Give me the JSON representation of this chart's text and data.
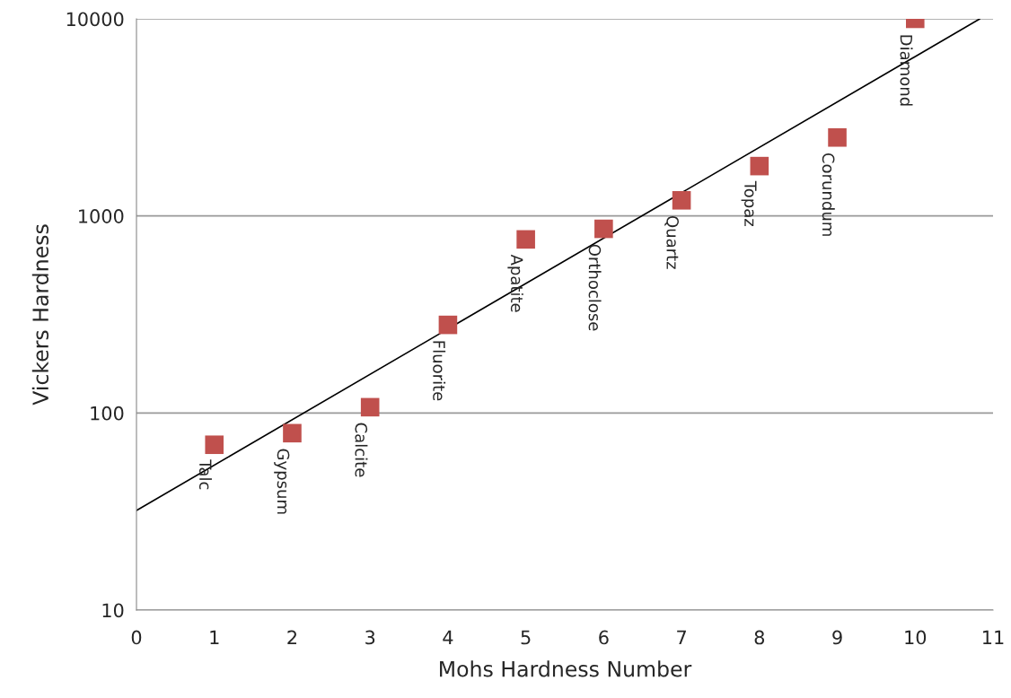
{
  "chart_data": {
    "type": "scatter",
    "xlabel": "Mohs Hardness Number",
    "ylabel": "Vickers Hardness",
    "log": "y",
    "grid": "y",
    "xlim": [
      0,
      11
    ],
    "xticks": [
      0,
      1,
      2,
      3,
      4,
      5,
      6,
      7,
      8,
      9,
      10,
      11
    ],
    "ylim": [
      10,
      10000
    ],
    "yticks": [
      10,
      100,
      1000,
      10000
    ],
    "series": [
      {
        "marker": "square",
        "color": "#c0504d",
        "x": [
          1,
          2,
          3,
          4,
          5,
          6,
          7,
          8,
          9,
          10
        ],
        "values": [
          69,
          79,
          107,
          280,
          760,
          860,
          1200,
          1790,
          2500,
          10000
        ]
      },
      {
        "type": "line",
        "marker": "none",
        "color": "#000000",
        "x": [
          0,
          10.83
        ],
        "values": [
          32,
          10000
        ]
      }
    ],
    "annotations": [
      {
        "text": "Talc",
        "x": 1,
        "y": 69
      },
      {
        "text": "Gypsum",
        "x": 2,
        "y": 79
      },
      {
        "text": "Calcite",
        "x": 3,
        "y": 107
      },
      {
        "text": "Fluorite",
        "x": 4,
        "y": 280
      },
      {
        "text": "Apatite",
        "x": 5,
        "y": 760
      },
      {
        "text": "Orthoclose",
        "x": 6,
        "y": 860
      },
      {
        "text": "Quartz",
        "x": 7,
        "y": 1200
      },
      {
        "text": "Topaz",
        "x": 8,
        "y": 1790
      },
      {
        "text": "Corundum",
        "x": 9,
        "y": 2500
      },
      {
        "text": "Diamond",
        "x": 10,
        "y": 10000
      }
    ]
  }
}
